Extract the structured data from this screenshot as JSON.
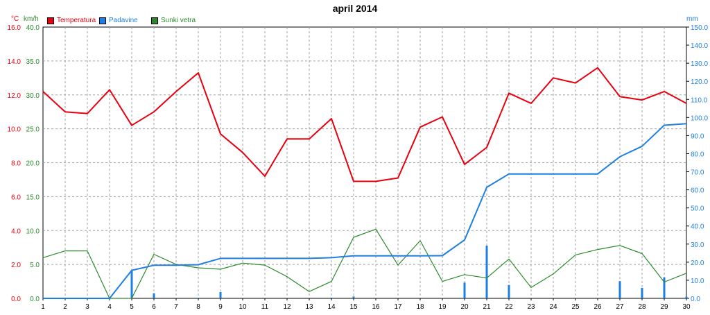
{
  "title": "april 2014",
  "units": {
    "temp": "°C",
    "wind": "km/h",
    "rain": "mm"
  },
  "legend": [
    {
      "label": "Temperatura",
      "color": "#e8000f"
    },
    {
      "label": "Padavine",
      "color": "#1f7fe0"
    },
    {
      "label": "Sunki vetra",
      "color": "#2a8a2a"
    }
  ],
  "chart_data": {
    "type": "line",
    "x": [
      1,
      2,
      3,
      4,
      5,
      6,
      7,
      8,
      9,
      10,
      11,
      12,
      13,
      14,
      15,
      16,
      17,
      18,
      19,
      20,
      21,
      22,
      23,
      24,
      25,
      26,
      27,
      28,
      29,
      30
    ],
    "xlim": [
      1,
      30
    ],
    "axes": {
      "temp": {
        "ylim": [
          0,
          16
        ],
        "ticks": [
          "0.0",
          "2.0",
          "4.0",
          "6.0",
          "8.0",
          "10.0",
          "12.0",
          "14.0",
          "16.0"
        ],
        "color": "#e8000f"
      },
      "wind": {
        "ylim": [
          0,
          40
        ],
        "ticks": [
          "0.0",
          "5.0",
          "10.0",
          "15.0",
          "20.0",
          "25.0",
          "30.0",
          "35.0",
          "40.0"
        ],
        "color": "#2a8a2a"
      },
      "rain": {
        "ylim": [
          0,
          150
        ],
        "ticks": [
          "0.0",
          "10.0",
          "20.0",
          "30.0",
          "40.0",
          "50.0",
          "60.0",
          "70.0",
          "80.0",
          "90.0",
          "100.0",
          "110.0",
          "120.0",
          "130.0",
          "140.0",
          "150.0"
        ],
        "color": "#1f7fe0"
      }
    },
    "series": [
      {
        "name": "Temperatura",
        "axis": "temp",
        "color": "#e8000f",
        "values": [
          12.2,
          11.0,
          10.9,
          12.3,
          10.2,
          11.0,
          12.2,
          13.3,
          9.7,
          8.6,
          7.2,
          9.4,
          9.4,
          10.6,
          6.9,
          6.9,
          7.1,
          10.1,
          10.7,
          7.9,
          8.9,
          12.1,
          11.5,
          13.0,
          12.7,
          13.6,
          11.9,
          11.7,
          12.2,
          11.5
        ]
      },
      {
        "name": "Sunki vetra",
        "axis": "wind",
        "color": "#2a8a2a",
        "values": [
          6.0,
          7.0,
          7.0,
          0.0,
          0.0,
          6.5,
          5.0,
          4.5,
          4.3,
          5.2,
          4.9,
          3.2,
          1.0,
          2.5,
          9.0,
          10.2,
          4.9,
          8.5,
          2.5,
          3.5,
          3.0,
          5.8,
          1.6,
          3.6,
          6.4,
          7.2,
          7.8,
          6.6,
          2.4,
          3.7
        ]
      },
      {
        "name": "Padavine",
        "axis": "rain",
        "color": "#1f7fe0",
        "values": [
          0.0,
          0.0,
          0.0,
          0.0,
          15.5,
          18.3,
          18.3,
          18.6,
          22.1,
          22.1,
          22.1,
          22.1,
          22.1,
          22.5,
          23.5,
          23.5,
          23.5,
          23.5,
          23.6,
          32.3,
          61.4,
          68.8,
          68.8,
          68.8,
          68.8,
          68.8,
          78.3,
          84.1,
          95.7,
          96.6
        ]
      }
    ],
    "daily_rain": {
      "axis": "rain",
      "color": "#1f7fe0",
      "values": [
        0,
        0,
        0,
        0,
        15.5,
        2.8,
        0,
        0.3,
        3.5,
        0,
        0,
        0,
        0,
        0.4,
        1.0,
        0,
        0,
        0,
        0.1,
        8.7,
        29.1,
        7.4,
        0,
        0,
        0,
        0,
        9.5,
        5.8,
        11.6,
        0.9
      ]
    },
    "grid": true
  }
}
